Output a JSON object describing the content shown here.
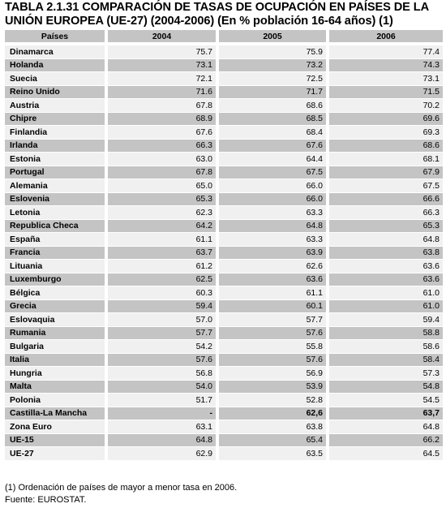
{
  "title": {
    "line1": "TABLA 2.1.31 COMPARACIÓN DE TASAS DE OCUPACIÓN EN PAÍSES DE LA",
    "line2": "UNIÓN EUROPEA (UE-27) (2004-2006) (En % población 16-64 años) (1)"
  },
  "table": {
    "headers": [
      "Países",
      "2004",
      "2005",
      "2006"
    ],
    "rows": [
      {
        "country": "Dinamarca",
        "v2004": "75.7",
        "v2005": "75.9",
        "v2006": "77.4"
      },
      {
        "country": "Holanda",
        "v2004": "73.1",
        "v2005": "73.2",
        "v2006": "74.3"
      },
      {
        "country": "Suecia",
        "v2004": "72.1",
        "v2005": "72.5",
        "v2006": "73.1"
      },
      {
        "country": "Reino Unido",
        "v2004": "71.6",
        "v2005": "71.7",
        "v2006": "71.5"
      },
      {
        "country": "Austria",
        "v2004": "67.8",
        "v2005": "68.6",
        "v2006": "70.2"
      },
      {
        "country": "Chipre",
        "v2004": "68.9",
        "v2005": "68.5",
        "v2006": "69.6"
      },
      {
        "country": "Finlandia",
        "v2004": "67.6",
        "v2005": "68.4",
        "v2006": "69.3"
      },
      {
        "country": "Irlanda",
        "v2004": "66.3",
        "v2005": "67.6",
        "v2006": "68.6"
      },
      {
        "country": "Estonia",
        "v2004": "63.0",
        "v2005": "64.4",
        "v2006": "68.1"
      },
      {
        "country": "Portugal",
        "v2004": "67.8",
        "v2005": "67.5",
        "v2006": "67.9"
      },
      {
        "country": "Alemania",
        "v2004": "65.0",
        "v2005": "66.0",
        "v2006": "67.5"
      },
      {
        "country": "Eslovenia",
        "v2004": "65.3",
        "v2005": "66.0",
        "v2006": "66.6"
      },
      {
        "country": "Letonia",
        "v2004": "62.3",
        "v2005": "63.3",
        "v2006": "66.3"
      },
      {
        "country": "Republica Checa",
        "v2004": "64.2",
        "v2005": "64.8",
        "v2006": "65.3"
      },
      {
        "country": "España",
        "v2004": "61.1",
        "v2005": "63.3",
        "v2006": "64.8"
      },
      {
        "country": "Francia",
        "v2004": "63.7",
        "v2005": "63.9",
        "v2006": "63.8"
      },
      {
        "country": "Lituania",
        "v2004": "61.2",
        "v2005": "62.6",
        "v2006": "63.6"
      },
      {
        "country": "Luxemburgo",
        "v2004": "62.5",
        "v2005": "63.6",
        "v2006": "63.6"
      },
      {
        "country": "Bélgica",
        "v2004": "60.3",
        "v2005": "61.1",
        "v2006": "61.0"
      },
      {
        "country": "Grecia",
        "v2004": "59.4",
        "v2005": "60.1",
        "v2006": "61.0"
      },
      {
        "country": "Eslovaquia",
        "v2004": "57.0",
        "v2005": "57.7",
        "v2006": "59.4"
      },
      {
        "country": "Rumania",
        "v2004": "57.7",
        "v2005": "57.6",
        "v2006": "58.8"
      },
      {
        "country": "Bulgaria",
        "v2004": "54.2",
        "v2005": "55.8",
        "v2006": "58.6"
      },
      {
        "country": "Italia",
        "v2004": "57.6",
        "v2005": "57.6",
        "v2006": "58.4"
      },
      {
        "country": "Hungria",
        "v2004": "56.8",
        "v2005": "56.9",
        "v2006": "57.3"
      },
      {
        "country": "Malta",
        "v2004": "54.0",
        "v2005": "53.9",
        "v2006": "54.8"
      },
      {
        "country": "Polonia",
        "v2004": "51.7",
        "v2005": "52.8",
        "v2006": "54.5"
      },
      {
        "country": "Castilla-La Mancha",
        "v2004": "-",
        "v2005": "62,6",
        "v2006": "63,7",
        "emphasis": true
      },
      {
        "country": "Zona Euro",
        "v2004": "63.1",
        "v2005": "63.8",
        "v2006": "64.8"
      },
      {
        "country": "UE-15",
        "v2004": "64.8",
        "v2005": "65.4",
        "v2006": "66.2"
      },
      {
        "country": "UE-27",
        "v2004": "62.9",
        "v2005": "63.5",
        "v2006": "64.5"
      }
    ]
  },
  "notes": {
    "footnote": "(1) Ordenación de países de mayor a menor tasa en 2006.",
    "source": "Fuente: EUROSTAT."
  },
  "colors": {
    "header_bg": "#c4c4c4",
    "row_light": "#f0f0f0",
    "row_dark": "#c4c4c4"
  }
}
